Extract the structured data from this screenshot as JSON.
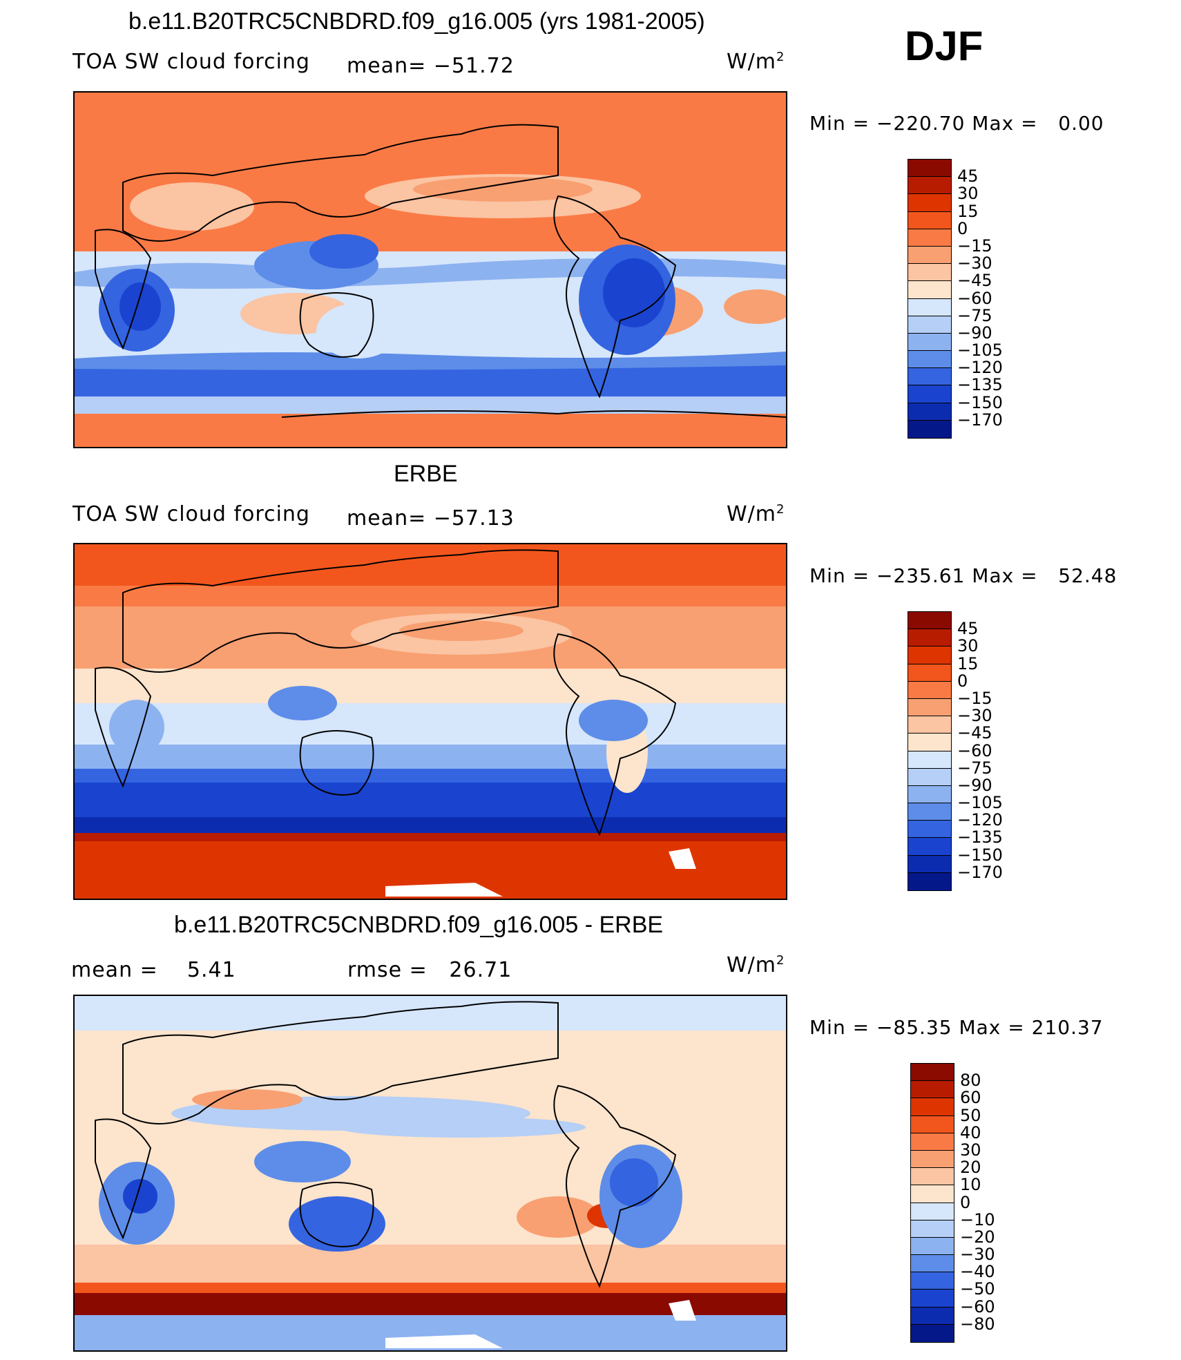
{
  "season": "DJF",
  "units": "W/m",
  "units_exp": "2",
  "panels": [
    {
      "title": "b.e11.B20TRC5CNBDRD.f09_g16.005 (yrs 1981-2005)",
      "variable": "TOA SW cloud forcing",
      "mean_label": "mean=",
      "mean": "−51.72",
      "min_label": "Min",
      "min": "−220.70",
      "max_label": "Max",
      "max": "0.00",
      "levels": [
        "45",
        "30",
        "15",
        "0",
        "−15",
        "−30",
        "−45",
        "−60",
        "−75",
        "−90",
        "−105",
        "−120",
        "−135",
        "−150",
        "−170"
      ],
      "colors": [
        "#8b0a00",
        "#b81c00",
        "#de3500",
        "#f2561d",
        "#fa7a45",
        "#f8a072",
        "#fbc4a2",
        "#fde4cc",
        "#d6e6fb",
        "#b5cff6",
        "#8db2f0",
        "#5d8de8",
        "#3464e0",
        "#1a44cf",
        "#0c2cb0",
        "#05188a"
      ]
    },
    {
      "title": "ERBE",
      "variable": "TOA SW cloud forcing",
      "mean_label": "mean=",
      "mean": "−57.13",
      "min_label": "Min",
      "min": "−235.61",
      "max_label": "Max",
      "max": "52.48",
      "levels": [
        "45",
        "30",
        "15",
        "0",
        "−15",
        "−30",
        "−45",
        "−60",
        "−75",
        "−90",
        "−105",
        "−120",
        "−135",
        "−150",
        "−170"
      ],
      "colors": [
        "#8b0a00",
        "#b81c00",
        "#de3500",
        "#f2561d",
        "#fa7a45",
        "#f8a072",
        "#fbc4a2",
        "#fde4cc",
        "#d6e6fb",
        "#b5cff6",
        "#8db2f0",
        "#5d8de8",
        "#3464e0",
        "#1a44cf",
        "#0c2cb0",
        "#05188a"
      ]
    },
    {
      "title": "b.e11.B20TRC5CNBDRD.f09_g16.005 - ERBE",
      "mean_label": "mean =",
      "mean": "5.41",
      "rmse_label": "rmse =",
      "rmse": "26.71",
      "min_label": "Min",
      "min": "−85.35",
      "max_label": "Max",
      "max": "210.37",
      "levels": [
        "80",
        "60",
        "50",
        "40",
        "30",
        "20",
        "10",
        "0",
        "−10",
        "−20",
        "−30",
        "−40",
        "−50",
        "−60",
        "−80"
      ],
      "colors": [
        "#8b0a00",
        "#b81c00",
        "#de3500",
        "#f2561d",
        "#fa7a45",
        "#f8a072",
        "#fbc4a2",
        "#fde4cc",
        "#d6e6fb",
        "#b5cff6",
        "#8db2f0",
        "#5d8de8",
        "#3464e0",
        "#1a44cf",
        "#0c2cb0",
        "#05188a"
      ]
    }
  ]
}
